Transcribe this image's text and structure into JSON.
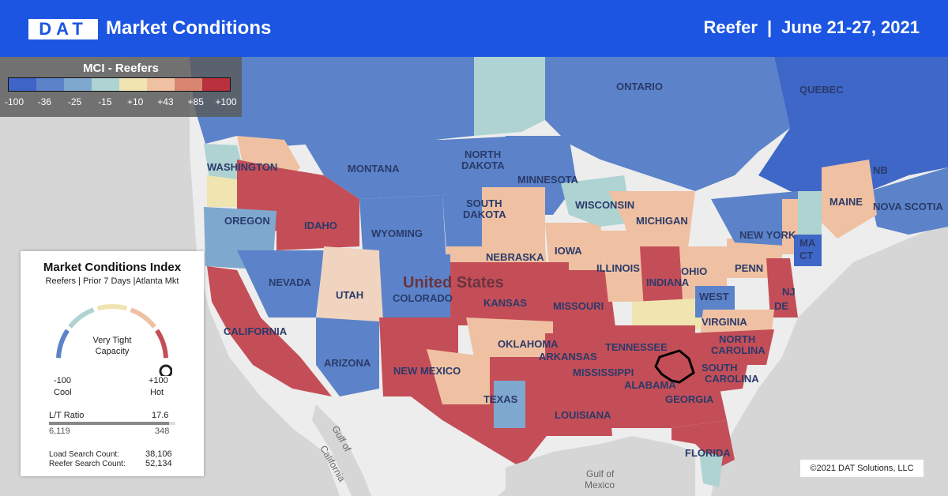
{
  "header": {
    "logo": "DAT",
    "title": "Market Conditions",
    "segment": "Reefer",
    "separator": "|",
    "dates": "June 21-27, 2021"
  },
  "legend": {
    "title": "MCI - Reefers",
    "colors": [
      "#3d64c6",
      "#5c83c9",
      "#7fa8cf",
      "#aed3d2",
      "#f0e4b0",
      "#efc1a2",
      "#d88572",
      "#b8313c"
    ],
    "labels": [
      "-100",
      "-36",
      "-25",
      "-15",
      "+10",
      "+43",
      "+85",
      "+100"
    ]
  },
  "card": {
    "title": "Market Conditions Index",
    "subtitle": "Reefers | Prior 7 Days |Atlanta Mkt",
    "status_line1": "Very Tight",
    "status_line2": "Capacity",
    "min_value": "-100",
    "min_label": "Cool",
    "max_value": "+100",
    "max_label": "Hot",
    "ratio_label": "L/T Ratio",
    "ratio_value": "17.6",
    "loads": "6,119",
    "trucks": "348",
    "load_search_label": "Load Search Count:",
    "load_search_value": "38,106",
    "reefer_search_label": "Reefer Search Count:",
    "reefer_search_value": "52,134",
    "gauge_level": 1.0
  },
  "map_labels": {
    "ontario": "ONTARIO",
    "quebec": "QUEBEC",
    "washington": "WASHINGTON",
    "montana": "MONTANA",
    "north": "NORTH",
    "dakota": "DAKOTA",
    "minnesota": "MINNESOTA",
    "south": "SOUTH",
    "dakota2": "DAKOTA",
    "wisconsin": "WISCONSIN",
    "michigan": "MICHIGAN",
    "oregon": "OREGON",
    "idaho": "IDAHO",
    "wyoming": "WYOMING",
    "nebraska": "NEBRASKA",
    "iowa": "IOWA",
    "illinois": "ILLINOIS",
    "indiana": "INDIANA",
    "ohio": "OHIO",
    "penn": "PENN",
    "newyork": "NEW YORK",
    "maine": "MAINE",
    "nb": "NB",
    "novascotia": "NOVA SCOTIA",
    "ma": "MA",
    "ct": "CT",
    "nevada": "NEVADA",
    "utah": "UTAH",
    "colorado": "COLORADO",
    "kansas": "KANSAS",
    "missouri": "MISSOURI",
    "us": "United States",
    "california": "CALIFORNIA",
    "arizona": "ARIZONA",
    "newmexico": "NEW MEXICO",
    "oklahoma": "OKLAHOMA",
    "arkansas": "ARKANSAS",
    "tennessee": "TENNESSEE",
    "westvirginia": "WEST",
    "virginia": "VIRGINIA",
    "nc": "NORTH",
    "carolina": "CAROLINA",
    "sc": "SOUTH",
    "carolina2": "CAROLINA",
    "texas": "TEXAS",
    "mississippi": "MISSISSIPPI",
    "alabama": "ALABAMA",
    "georgia": "GEORGIA",
    "louisiana": "LOUISIANA",
    "florida": "FLORIDA",
    "nj": "NJ",
    "de": "DE",
    "gulfcal1": "Gulf of",
    "gulfcal2": "California",
    "gulfmex1": "Gulf of",
    "gulfmex2": "Mexico"
  },
  "copyright": "©2021 DAT Solutions, LLC"
}
